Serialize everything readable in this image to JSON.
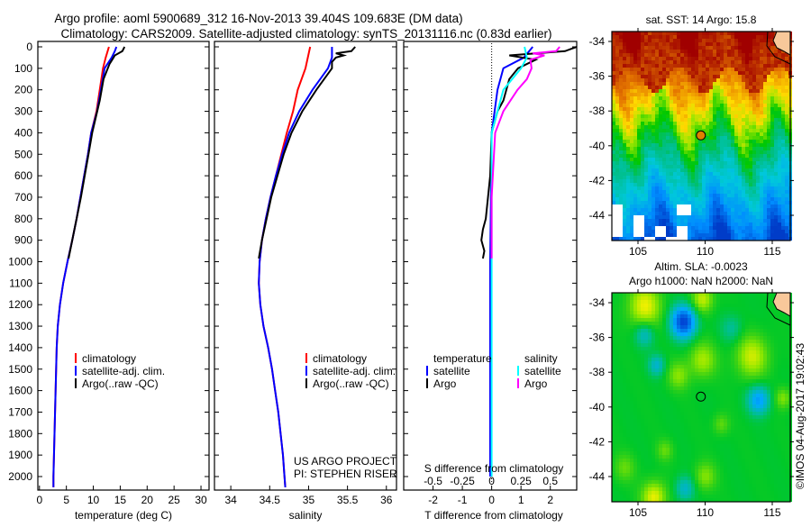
{
  "header": {
    "title_line1": "Argo profile: aoml 5900689_312 16-Nov-2013 39.404S 109.683E (DM data)",
    "title_line2": "Climatology: CARS2009. Satellite-adjusted climatology: synTS_20131116.nc (0.83d earlier)"
  },
  "colors": {
    "climatology": "#ff0000",
    "satellite": "#0000ff",
    "argo": "#000000",
    "s_satellite": "#00ffff",
    "s_argo": "#ff00ff"
  },
  "chart_data": [
    {
      "type": "line",
      "name": "temperature",
      "xlabel": "temperature (deg C)",
      "xticks": [
        0,
        5,
        10,
        15,
        20,
        25,
        30
      ],
      "xlim": [
        -0.3,
        31.5
      ],
      "ylim": [
        0,
        2050
      ],
      "yticks": [
        0,
        100,
        200,
        300,
        400,
        500,
        600,
        700,
        800,
        900,
        1000,
        1100,
        1200,
        1300,
        1400,
        1500,
        1600,
        1700,
        1800,
        1900,
        2000
      ],
      "legend": [
        "climatology",
        "satellite-adj. clim.",
        "Argo(..raw -QC)"
      ],
      "series": [
        {
          "name": "climatology",
          "depth": [
            0,
            50,
            100,
            200,
            300,
            400,
            500,
            600,
            700,
            800,
            900,
            1000,
            1100,
            1200,
            1300,
            1400,
            1600,
            1800,
            2000,
            2050
          ],
          "values": [
            12.9,
            12.3,
            11.8,
            11.2,
            10.6,
            9.6,
            9.0,
            8.3,
            7.6,
            6.9,
            6.1,
            5.2,
            4.4,
            3.8,
            3.4,
            3.2,
            3.0,
            2.8,
            2.6,
            2.6
          ]
        },
        {
          "name": "satellite-adj. clim.",
          "depth": [
            0,
            20,
            50,
            100,
            200,
            300,
            400,
            500,
            600,
            700,
            800,
            900,
            1000,
            1100,
            1200,
            1300,
            1400,
            1600,
            1800,
            2000,
            2050
          ],
          "values": [
            14.3,
            14.0,
            13.4,
            12.1,
            11.4,
            10.7,
            9.6,
            9.0,
            8.3,
            7.6,
            6.9,
            6.1,
            5.2,
            4.4,
            3.8,
            3.4,
            3.2,
            3.0,
            2.8,
            2.6,
            2.6
          ]
        },
        {
          "name": "Argo(..raw -QC)",
          "depth": [
            0,
            20,
            40,
            60,
            80,
            150,
            250,
            400,
            500,
            600,
            700,
            800,
            900,
            985
          ],
          "values": [
            15.8,
            15.4,
            14.0,
            13.5,
            13.0,
            11.9,
            11.2,
            9.8,
            9.1,
            8.4,
            7.7,
            6.9,
            6.1,
            5.4
          ]
        }
      ]
    },
    {
      "type": "line",
      "name": "salinity",
      "xlabel": "salinity",
      "xticks": [
        34,
        34.5,
        35,
        35.5,
        36
      ],
      "xlim": [
        33.79,
        36.13
      ],
      "ylim": [
        0,
        2050
      ],
      "legend": [
        "climatology",
        "satellite-adj. clim.",
        "Argo(..raw -QC)"
      ],
      "annotation": [
        "US ARGO PROJECT",
        "PI: STEPHEN RISER"
      ],
      "series": [
        {
          "name": "climatology",
          "depth": [
            0,
            50,
            100,
            200,
            300,
            400,
            500,
            600,
            700,
            800,
            900,
            1000,
            1100,
            1200,
            1300,
            1400,
            1500,
            1600,
            1700,
            1800,
            1900,
            2000,
            2050
          ],
          "values": [
            35.02,
            34.99,
            34.96,
            34.86,
            34.8,
            34.72,
            34.65,
            34.58,
            34.51,
            34.45,
            34.4,
            34.37,
            34.36,
            34.38,
            34.42,
            34.48,
            34.53,
            34.57,
            34.61,
            34.64,
            34.67,
            34.69,
            34.7
          ]
        },
        {
          "name": "satellite-adj. clim.",
          "depth": [
            0,
            50,
            100,
            200,
            300,
            400,
            500,
            600,
            700,
            800,
            900,
            1000,
            1100,
            1200,
            1300,
            1400,
            1500,
            1600,
            1700,
            1800,
            1900,
            2000,
            2050
          ],
          "values": [
            35.3,
            35.3,
            35.25,
            35.05,
            34.88,
            34.75,
            34.66,
            34.58,
            34.51,
            34.45,
            34.4,
            34.37,
            34.36,
            34.38,
            34.42,
            34.48,
            34.53,
            34.57,
            34.61,
            34.64,
            34.67,
            34.69,
            34.7
          ]
        },
        {
          "name": "Argo(..raw -QC)",
          "depth": [
            0,
            20,
            30,
            40,
            50,
            70,
            100,
            150,
            200,
            300,
            400,
            500,
            700,
            900,
            985
          ],
          "values": [
            35.6,
            35.55,
            35.35,
            35.45,
            35.35,
            35.3,
            35.3,
            35.2,
            35.1,
            34.92,
            34.78,
            34.68,
            34.52,
            34.4,
            34.36
          ]
        }
      ]
    },
    {
      "type": "line",
      "name": "difference",
      "xlabel": "T difference from climatology",
      "xlabel_top": "S difference from climatology",
      "xticks": [
        -2,
        -1,
        0,
        1,
        2
      ],
      "xticks_s": [
        "-0.5",
        "-0.25",
        "0",
        "0.25",
        "0.5"
      ],
      "xticks_s_values": [
        -0.5,
        -0.25,
        0,
        0.25,
        0.5
      ],
      "xlim": [
        -3,
        2.9
      ],
      "ylim": [
        0,
        2050
      ],
      "legend_temperature": {
        "heading": "temperature",
        "items": [
          "satellite",
          "Argo"
        ]
      },
      "legend_salinity": {
        "heading": "salinity",
        "items": [
          "satellite",
          "Argo"
        ]
      },
      "series": [
        {
          "name": "T satellite",
          "unit": "T",
          "depth": [
            0,
            50,
            100,
            200,
            300,
            400,
            1000,
            1300,
            2000
          ],
          "values": [
            1.4,
            1.1,
            0.4,
            0.2,
            0.1,
            0,
            -0.05,
            -0.05,
            -0.05
          ]
        },
        {
          "name": "T Argo",
          "unit": "T",
          "depth": [
            0,
            20,
            40,
            60,
            100,
            150,
            250,
            300,
            400,
            600,
            800,
            850,
            900,
            950,
            985
          ],
          "values": [
            2.9,
            2.5,
            0.6,
            1.5,
            0.9,
            0.6,
            0.4,
            0.2,
            0,
            -0.05,
            -0.2,
            -0.3,
            -0.35,
            -0.25,
            -0.3
          ]
        },
        {
          "name": "S satellite",
          "unit": "S",
          "depth": [
            0,
            50,
            100,
            200,
            300,
            400,
            2000
          ],
          "values": [
            0.28,
            0.3,
            0.25,
            0.1,
            0.05,
            0,
            0
          ]
        },
        {
          "name": "S Argo",
          "unit": "S",
          "depth": [
            0,
            20,
            30,
            40,
            60,
            100,
            150,
            200,
            300,
            400,
            700,
            985
          ],
          "values": [
            0.58,
            0.55,
            0.35,
            0.45,
            0.33,
            0.34,
            0.3,
            0.22,
            0.1,
            0.03,
            0,
            0
          ]
        }
      ]
    }
  ],
  "map_sst": {
    "title": "sat. SST: 14 Argo: 15.8",
    "lat_ticks": [
      "-34",
      "-36",
      "-38",
      "-40",
      "-42",
      "-44"
    ],
    "lon_ticks": [
      "105",
      "110",
      "115"
    ]
  },
  "map_sla": {
    "title_line1": "Altim. SLA: -0.0023",
    "title_line2": "Argo h1000: NaN h2000: NaN",
    "lat_ticks": [
      "-34",
      "-36",
      "-38",
      "-40",
      "-42",
      "-44"
    ],
    "lon_ticks": [
      "105",
      "110",
      "115"
    ]
  },
  "argo_position": {
    "lon": 109.683,
    "lat": -39.404
  },
  "watermark": "©IMOS 04-Aug-2017 19:02:43"
}
